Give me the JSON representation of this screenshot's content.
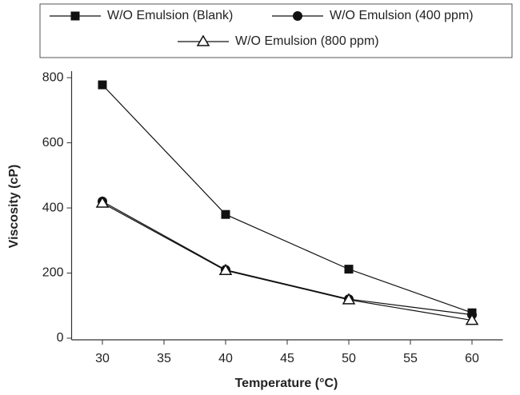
{
  "chart_data": {
    "type": "line",
    "x_label": "Temperature (°C)",
    "y_label": "Viscosity (cP)",
    "x": [
      30,
      40,
      50,
      60
    ],
    "series": [
      {
        "name": "W/O Emulsion (Blank)",
        "color": "#111111",
        "marker": "square",
        "values": [
          778,
          380,
          212,
          78
        ]
      },
      {
        "name": "W/O Emulsion (400 ppm)",
        "color": "#111111",
        "marker": "circle",
        "values": [
          420,
          210,
          120,
          72
        ]
      },
      {
        "name": "W/O Emulsion (800 ppm)",
        "color": "#111111",
        "marker": "triangle",
        "values": [
          415,
          208,
          118,
          55
        ]
      }
    ],
    "xlim": [
      27.5,
      62.5
    ],
    "xticks": [
      30,
      35,
      40,
      45,
      50,
      55,
      60
    ],
    "ylim": [
      -5,
      820
    ],
    "yticks": [
      0,
      200,
      400,
      600,
      800
    ],
    "legend": "top"
  }
}
